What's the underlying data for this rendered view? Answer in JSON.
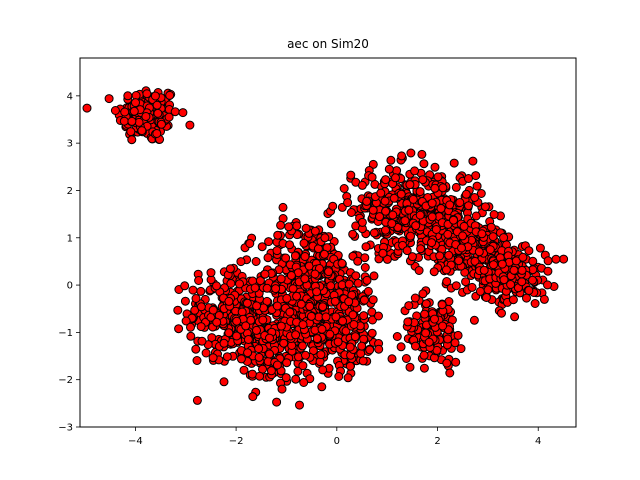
{
  "chart_data": {
    "type": "scatter",
    "title": "aec on Sim20",
    "xlabel": "",
    "ylabel": "",
    "xlim": [
      -5.1,
      4.75
    ],
    "ylim": [
      -3.0,
      4.8
    ],
    "xticks": [
      -4,
      -2,
      0,
      2,
      4
    ],
    "yticks": [
      -3,
      -2,
      -1,
      0,
      1,
      2,
      3,
      4
    ],
    "grid": false,
    "legend": "none",
    "marker_fill": "#ff0000",
    "marker_edge": "#000000",
    "clusters": [
      {
        "center": [
          -3.75,
          3.6
        ],
        "spread": [
          0.3,
          0.3
        ],
        "count": 160
      },
      {
        "center": [
          -2.15,
          -0.55
        ],
        "spread": [
          0.4,
          0.45
        ],
        "count": 220
      },
      {
        "center": [
          -1.2,
          -1.1
        ],
        "spread": [
          0.5,
          0.5
        ],
        "count": 300
      },
      {
        "center": [
          -0.55,
          0.2
        ],
        "spread": [
          0.5,
          0.6
        ],
        "count": 320
      },
      {
        "center": [
          0.1,
          -0.8
        ],
        "spread": [
          0.45,
          0.5
        ],
        "count": 220
      },
      {
        "center": [
          1.2,
          1.6
        ],
        "spread": [
          0.45,
          0.45
        ],
        "count": 280
      },
      {
        "center": [
          2.1,
          1.5
        ],
        "spread": [
          0.4,
          0.45
        ],
        "count": 200
      },
      {
        "center": [
          2.7,
          0.7
        ],
        "spread": [
          0.4,
          0.4
        ],
        "count": 220
      },
      {
        "center": [
          3.5,
          0.2
        ],
        "spread": [
          0.35,
          0.3
        ],
        "count": 160
      },
      {
        "center": [
          1.9,
          -0.95
        ],
        "spread": [
          0.3,
          0.35
        ],
        "count": 130
      }
    ]
  }
}
